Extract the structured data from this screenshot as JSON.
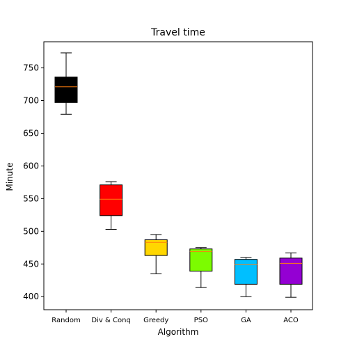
{
  "chart_data": {
    "type": "box",
    "title": "Travel time",
    "xlabel": "Algorithm",
    "ylabel": "Minute",
    "ylim": [
      380,
      790
    ],
    "yticks": [
      400,
      450,
      500,
      550,
      600,
      650,
      700,
      750
    ],
    "grid": false,
    "categories": [
      "Random",
      "Div & Conq",
      "Greedy",
      "PSO",
      "GA",
      "ACO"
    ],
    "boxes": [
      {
        "category": "Random",
        "whisker_low": 679,
        "q1": 697,
        "median": 721,
        "q3": 736,
        "whisker_high": 773,
        "color": "#000000"
      },
      {
        "category": "Div & Conq",
        "whisker_low": 503,
        "q1": 524,
        "median": 549,
        "q3": 571,
        "whisker_high": 576,
        "color": "#ff0000"
      },
      {
        "category": "Greedy",
        "whisker_low": 435,
        "q1": 463,
        "median": 483,
        "q3": 487,
        "whisker_high": 495,
        "color": "#ffd700"
      },
      {
        "category": "PSO",
        "whisker_low": 414,
        "q1": 439,
        "median": 469,
        "q3": 473,
        "whisker_high": 475,
        "color": "#7cfc00"
      },
      {
        "category": "GA",
        "whisker_low": 400,
        "q1": 419,
        "median": 449,
        "q3": 457,
        "whisker_high": 460,
        "color": "#00bfff"
      },
      {
        "category": "ACO",
        "whisker_low": 399,
        "q1": 419,
        "median": 451,
        "q3": 459,
        "whisker_high": 467,
        "color": "#9400d3"
      }
    ],
    "median_color": "#ff7f0e"
  }
}
